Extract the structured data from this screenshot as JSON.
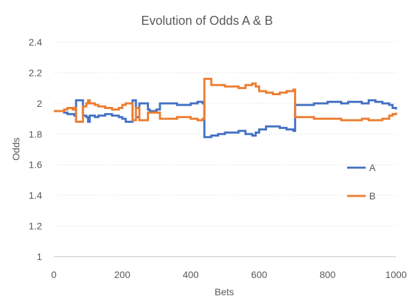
{
  "chart_data": {
    "type": "line",
    "title": "Evolution of Odds A & B",
    "xlabel": "Bets",
    "ylabel": "Odds",
    "xlim": [
      0,
      1000
    ],
    "ylim": [
      1,
      2.4
    ],
    "x_ticks": [
      0,
      200,
      400,
      600,
      800,
      1000
    ],
    "y_ticks": [
      1,
      1.2,
      1.4,
      1.6,
      1.8,
      2,
      2.2,
      2.4
    ],
    "y_tick_labels": [
      "1",
      "1.2",
      "1.4",
      "1.6",
      "1.8",
      "2",
      "2.2",
      "2.4"
    ],
    "grid": "horizontal",
    "legend_position": "right",
    "series": [
      {
        "name": "A",
        "color": "#4472c4",
        "x": [
          0,
          30,
          40,
          55,
          60,
          65,
          75,
          85,
          95,
          100,
          105,
          120,
          130,
          150,
          170,
          190,
          200,
          210,
          225,
          230,
          240,
          250,
          260,
          275,
          280,
          300,
          310,
          330,
          360,
          400,
          420,
          435,
          440,
          460,
          480,
          500,
          520,
          540,
          560,
          580,
          590,
          600,
          620,
          640,
          660,
          680,
          700,
          705,
          720,
          760,
          800,
          840,
          860,
          880,
          900,
          920,
          940,
          960,
          980,
          990,
          1000
        ],
        "y": [
          1.95,
          1.94,
          1.93,
          1.93,
          1.92,
          2.02,
          2.02,
          1.92,
          1.91,
          1.88,
          1.92,
          1.91,
          1.92,
          1.93,
          1.92,
          1.91,
          1.9,
          1.88,
          1.88,
          2.02,
          1.91,
          2.0,
          2.0,
          1.96,
          1.95,
          1.96,
          2.0,
          2.0,
          1.99,
          2.0,
          2.01,
          2.0,
          1.78,
          1.79,
          1.8,
          1.81,
          1.81,
          1.82,
          1.8,
          1.79,
          1.81,
          1.83,
          1.85,
          1.85,
          1.84,
          1.83,
          1.82,
          1.99,
          1.99,
          2.0,
          2.01,
          2.0,
          2.01,
          2.01,
          2.0,
          2.02,
          2.01,
          2.0,
          1.99,
          1.97,
          1.96
        ]
      },
      {
        "name": "B",
        "color": "#ed7d31",
        "x": [
          0,
          30,
          40,
          55,
          60,
          65,
          75,
          85,
          95,
          100,
          105,
          120,
          130,
          150,
          170,
          190,
          200,
          210,
          225,
          230,
          240,
          250,
          260,
          275,
          280,
          300,
          310,
          330,
          360,
          400,
          420,
          435,
          440,
          460,
          480,
          500,
          520,
          540,
          560,
          580,
          590,
          600,
          620,
          640,
          660,
          680,
          700,
          705,
          720,
          760,
          800,
          840,
          860,
          880,
          900,
          920,
          940,
          960,
          980,
          990,
          1000
        ],
        "y": [
          1.95,
          1.96,
          1.97,
          1.96,
          1.97,
          1.88,
          1.88,
          1.98,
          2.0,
          2.02,
          2.0,
          1.99,
          1.98,
          1.97,
          1.96,
          1.97,
          1.99,
          2.0,
          2.0,
          1.89,
          1.97,
          1.89,
          1.89,
          1.94,
          1.94,
          1.94,
          1.9,
          1.9,
          1.91,
          1.9,
          1.89,
          1.9,
          2.16,
          2.12,
          2.12,
          2.11,
          2.11,
          2.1,
          2.12,
          2.13,
          2.11,
          2.08,
          2.07,
          2.06,
          2.07,
          2.08,
          2.09,
          1.91,
          1.91,
          1.9,
          1.9,
          1.89,
          1.89,
          1.89,
          1.9,
          1.89,
          1.89,
          1.9,
          1.92,
          1.93,
          1.94
        ]
      }
    ]
  }
}
